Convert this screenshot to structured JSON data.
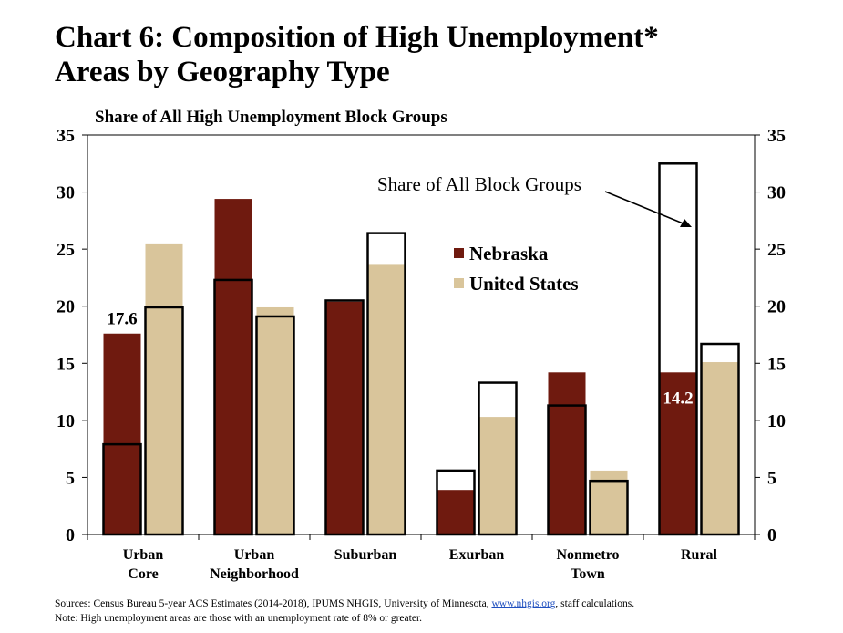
{
  "title_line1": "Chart 6: Composition of High Unemployment*",
  "title_line2": "Areas by Geography Type",
  "chart_data": {
    "type": "bar",
    "title": "Chart 6: Composition of High Unemployment* Areas by Geography Type",
    "subtitle": "Share of All High Unemployment Block Groups",
    "ylim": [
      0,
      35
    ],
    "yticks": [
      0,
      5,
      10,
      15,
      20,
      25,
      30,
      35
    ],
    "categories": [
      [
        "Urban",
        "Core"
      ],
      [
        "Urban",
        "Neighborhood"
      ],
      [
        "Suburban"
      ],
      [
        "Exurban"
      ],
      [
        "Nonmetro",
        "Town"
      ],
      [
        "Rural"
      ]
    ],
    "series": [
      {
        "name": "Nebraska",
        "color": "#6f1a0f",
        "values": [
          17.6,
          29.4,
          20.4,
          3.9,
          14.2,
          14.2
        ]
      },
      {
        "name": "United States",
        "color": "#d9c59b",
        "values": [
          25.5,
          19.9,
          23.7,
          10.3,
          5.6,
          15.1
        ]
      }
    ],
    "share_of_all_block_groups": {
      "label": "Share of All Block Groups",
      "nebraska": [
        7.9,
        22.3,
        20.5,
        5.6,
        11.3,
        32.5
      ],
      "united_states": [
        19.9,
        19.1,
        26.4,
        13.3,
        4.7,
        16.7
      ]
    },
    "data_labels": [
      {
        "category": 0,
        "series": 0,
        "text": "17.6",
        "color": "#000000"
      },
      {
        "category": 5,
        "series": 0,
        "text": "14.2",
        "color": "#ffffff"
      }
    ],
    "legend_position": "center"
  },
  "footer": {
    "sources_prefix": "Sources: Census Bureau 5-year ACS Estimates (2014-2018), IPUMS NHGIS, University of Minnesota, ",
    "sources_link": "www.nhgis.org",
    "sources_suffix": ", staff calculations.",
    "note": "Note: High unemployment areas are those with an unemployment rate of 8% or greater."
  }
}
